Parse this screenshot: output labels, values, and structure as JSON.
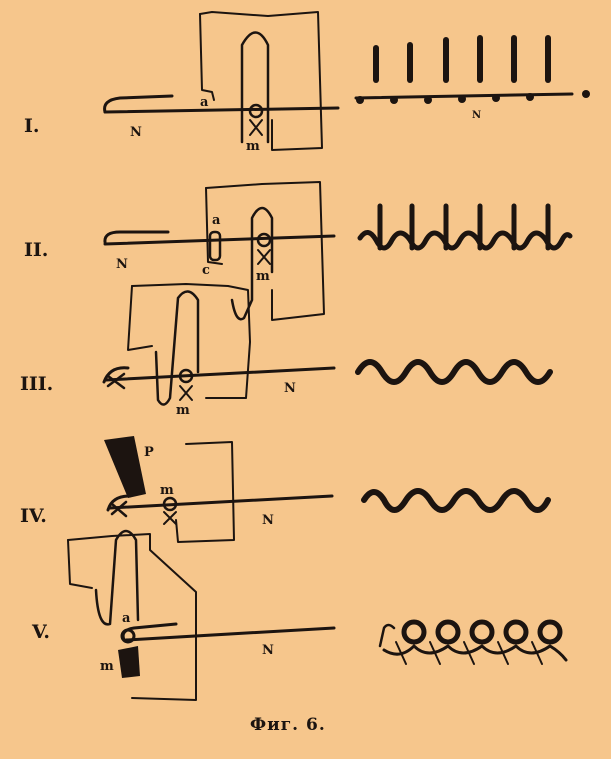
{
  "figure": {
    "caption": "Фиг. 6.",
    "steps": [
      {
        "numeral": "I.",
        "labels": {
          "needle": "N",
          "a": "a",
          "m": "m",
          "strip_needle": "N"
        }
      },
      {
        "numeral": "II.",
        "labels": {
          "needle": "N",
          "a": "a",
          "c": "c",
          "m": "m"
        }
      },
      {
        "numeral": "III.",
        "labels": {
          "needle": "N",
          "m": "m"
        }
      },
      {
        "numeral": "IV.",
        "labels": {
          "needle": "N",
          "p": "P",
          "m": "m"
        }
      },
      {
        "numeral": "V.",
        "labels": {
          "needle": "N",
          "a": "a",
          "m": "m"
        }
      }
    ]
  },
  "colors": {
    "background": "#f6c68c",
    "ink": "#1c1410"
  }
}
